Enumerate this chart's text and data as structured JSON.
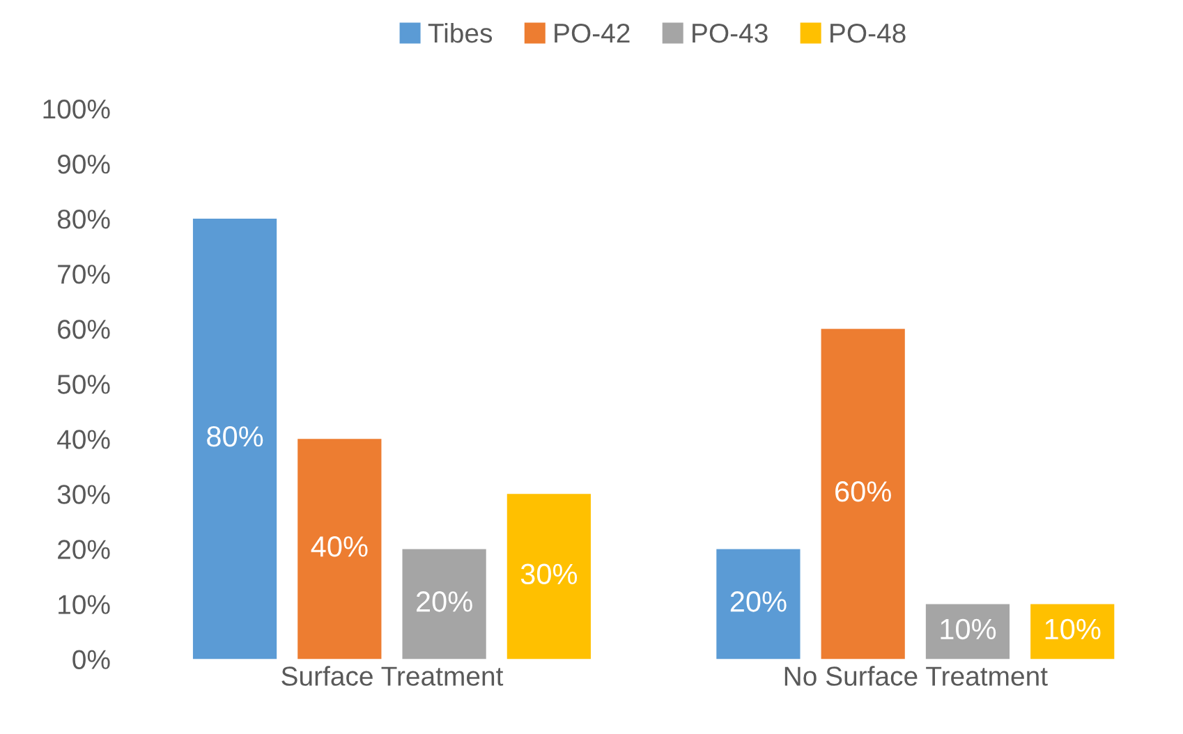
{
  "chart_data": {
    "type": "bar",
    "categories": [
      "Surface Treatment",
      "No Surface Treatment"
    ],
    "series": [
      {
        "name": "Tibes",
        "color": "#5b9bd5",
        "values": [
          80,
          20
        ],
        "value_labels": [
          "80%",
          "20%"
        ]
      },
      {
        "name": "PO-42",
        "color": "#ed7d31",
        "values": [
          40,
          60
        ],
        "value_labels": [
          "40%",
          "60%"
        ]
      },
      {
        "name": "PO-43",
        "color": "#a5a5a5",
        "values": [
          20,
          10
        ],
        "value_labels": [
          "20%",
          "10%"
        ]
      },
      {
        "name": "PO-48",
        "color": "#ffc000",
        "values": [
          30,
          10
        ],
        "value_labels": [
          "30%",
          "10%"
        ]
      }
    ],
    "ylim": [
      0,
      100
    ],
    "yticks": [
      {
        "value": 0,
        "label": "0%"
      },
      {
        "value": 10,
        "label": "10%"
      },
      {
        "value": 20,
        "label": "20%"
      },
      {
        "value": 30,
        "label": "30%"
      },
      {
        "value": 40,
        "label": "40%"
      },
      {
        "value": 50,
        "label": "50%"
      },
      {
        "value": 60,
        "label": "60%"
      },
      {
        "value": 70,
        "label": "70%"
      },
      {
        "value": 80,
        "label": "80%"
      },
      {
        "value": 90,
        "label": "90%"
      },
      {
        "value": 100,
        "label": "100%"
      }
    ],
    "grid": false,
    "legend": "top"
  }
}
